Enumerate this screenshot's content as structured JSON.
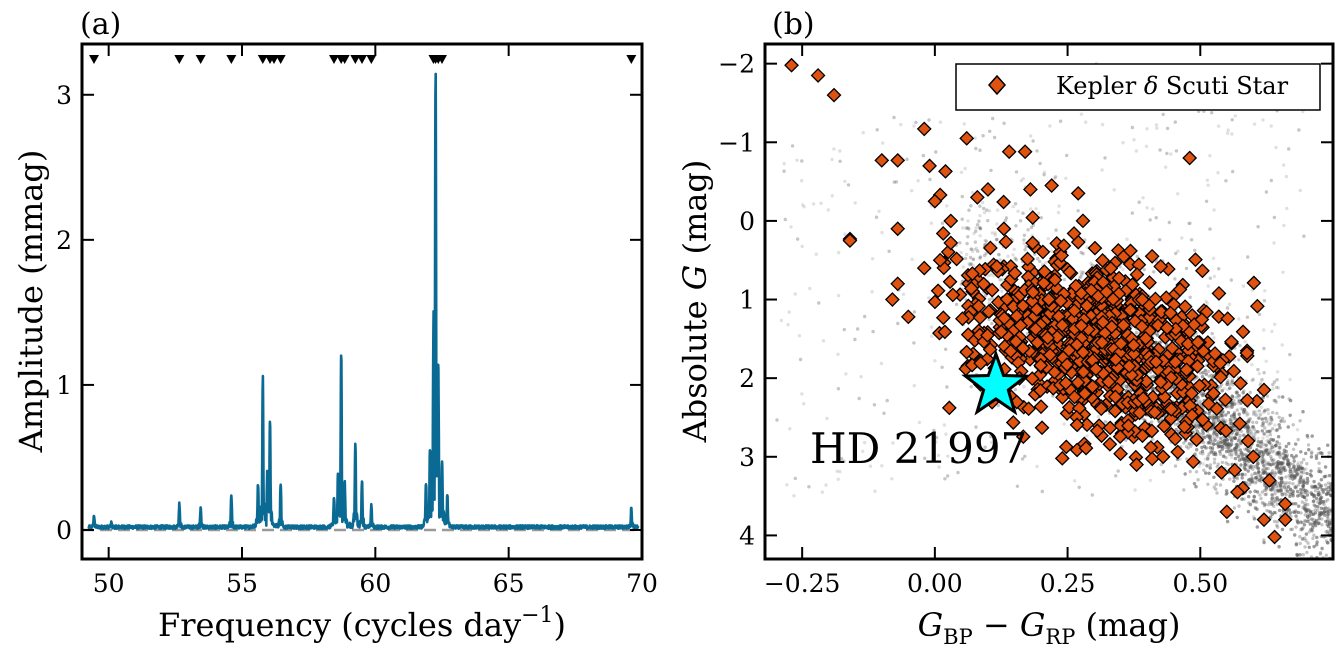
{
  "chart_data": [
    {
      "type": "line",
      "panel_label": "(a)",
      "xlabel": "Frequency (cycles day",
      "xlabel_sup": "−1",
      "xlabel_close": ")",
      "ylabel": "Amplitude (mmag)",
      "xlim": [
        49,
        70
      ],
      "ylim": [
        -0.2,
        3.35
      ],
      "xticks": [
        50,
        55,
        60,
        65,
        70
      ],
      "yticks": [
        0,
        1,
        2,
        3
      ],
      "grid": false,
      "zero_line": {
        "y": 0,
        "style": "dashed",
        "color": "#999999"
      },
      "series": [
        {
          "color": "#0b6a94",
          "peaks": [
            {
              "f": 49.45,
              "a": 0.08
            },
            {
              "f": 50.1,
              "a": 0.03
            },
            {
              "f": 52.65,
              "a": 0.16
            },
            {
              "f": 53.45,
              "a": 0.14
            },
            {
              "f": 54.6,
              "a": 0.22
            },
            {
              "f": 55.6,
              "a": 0.3
            },
            {
              "f": 55.78,
              "a": 0.99
            },
            {
              "f": 55.95,
              "a": 0.35
            },
            {
              "f": 56.05,
              "a": 0.7
            },
            {
              "f": 56.45,
              "a": 0.3
            },
            {
              "f": 58.45,
              "a": 0.2
            },
            {
              "f": 58.6,
              "a": 0.35
            },
            {
              "f": 58.72,
              "a": 1.17
            },
            {
              "f": 58.85,
              "a": 0.3
            },
            {
              "f": 59.25,
              "a": 0.58
            },
            {
              "f": 59.5,
              "a": 0.32
            },
            {
              "f": 59.85,
              "a": 0.15
            },
            {
              "f": 61.9,
              "a": 0.28
            },
            {
              "f": 62.05,
              "a": 0.45
            },
            {
              "f": 62.18,
              "a": 1.2
            },
            {
              "f": 62.26,
              "a": 3.02
            },
            {
              "f": 62.36,
              "a": 1.0
            },
            {
              "f": 62.5,
              "a": 0.4
            },
            {
              "f": 62.7,
              "a": 0.2
            },
            {
              "f": 69.6,
              "a": 0.13
            }
          ],
          "noise_level": 0.02
        }
      ],
      "markers": {
        "symbol": "triangle-down",
        "y": 3.24,
        "x": [
          49.45,
          52.65,
          53.45,
          54.6,
          55.78,
          56.05,
          56.2,
          56.45,
          58.45,
          58.72,
          58.85,
          59.25,
          59.5,
          59.85,
          62.18,
          62.26,
          62.36,
          62.5,
          69.6
        ]
      }
    },
    {
      "type": "scatter",
      "panel_label": "(b)",
      "xlabel_parts": [
        "G",
        "BP",
        " − ",
        "G",
        "RP",
        " (mag)"
      ],
      "ylabel_parts": [
        "Absolute ",
        "G",
        " (mag)"
      ],
      "xlim": [
        -0.32,
        0.75
      ],
      "ylim": [
        4.3,
        -2.25
      ],
      "y_inverted": true,
      "xticks": [
        -0.25,
        0.0,
        0.25,
        0.5
      ],
      "xtick_labels": [
        "−0.25",
        "0.00",
        "0.25",
        "0.50"
      ],
      "yticks": [
        -2,
        -1,
        0,
        1,
        2,
        3,
        4
      ],
      "ytick_labels": [
        "−2",
        "−1",
        "0",
        "1",
        "2",
        "3",
        "4"
      ],
      "grid": false,
      "legend": {
        "placement": "top-right",
        "entries": [
          {
            "label_parts": [
              "Kepler ",
              "δ",
              " Scuti Star"
            ],
            "marker": "diamond",
            "color": "#e0520f"
          }
        ]
      },
      "background_population": {
        "color": "#555555",
        "description_hidden": true,
        "density_axis": {
          "x0": 0.0,
          "y0": 0.6,
          "x1": 0.75,
          "y1": 4.3
        }
      },
      "series": [
        {
          "marker": "diamond",
          "color": "#e0520f",
          "edge_color": "#000000",
          "scattered_points": [
            [
              -0.27,
              -1.98
            ],
            [
              -0.22,
              -1.85
            ],
            [
              -0.19,
              -1.6
            ],
            [
              -0.16,
              0.23
            ],
            [
              -0.16,
              0.25
            ],
            [
              -0.1,
              -0.77
            ],
            [
              -0.07,
              -0.77
            ],
            [
              -0.02,
              -1.17
            ],
            [
              -0.01,
              -0.7
            ],
            [
              0.02,
              -0.63
            ],
            [
              0.06,
              -1.05
            ],
            [
              0.01,
              -0.33
            ],
            [
              0.0,
              -0.25
            ],
            [
              -0.07,
              0.8
            ],
            [
              -0.08,
              1.0
            ],
            [
              -0.05,
              1.22
            ],
            [
              -0.02,
              0.6
            ],
            [
              0.01,
              0.5
            ],
            [
              0.03,
              0.28
            ],
            [
              0.1,
              -0.4
            ],
            [
              0.14,
              -0.88
            ],
            [
              0.17,
              -0.88
            ],
            [
              0.18,
              -0.4
            ],
            [
              0.22,
              -0.45
            ],
            [
              0.27,
              -0.35
            ],
            [
              0.48,
              -0.8
            ],
            [
              -0.07,
              0.1
            ],
            [
              0.03,
              0.0
            ],
            [
              0.08,
              -0.3
            ],
            [
              0.13,
              0.1
            ],
            [
              0.24,
              3.02
            ],
            [
              0.62,
              3.8
            ],
            [
              0.66,
              3.8
            ],
            [
              0.64,
              4.02
            ],
            [
              0.55,
              3.7
            ],
            [
              0.6,
              3.0
            ],
            [
              0.63,
              3.3
            ],
            [
              0.66,
              3.6
            ],
            [
              0.58,
              3.4
            ],
            [
              0.54,
              3.2
            ],
            [
              0.62,
              2.15
            ],
            [
              0.59,
              2.8
            ],
            [
              0.57,
              3.45
            ],
            [
              0.43,
              3.0
            ],
            [
              0.38,
              3.1
            ]
          ],
          "cluster": {
            "x_center": 0.3,
            "y_center": 1.55,
            "x_spread": 0.13,
            "y_spread": 0.55,
            "count": 900
          }
        }
      ],
      "highlight": {
        "label": "HD 21997",
        "x": 0.115,
        "y": 2.1,
        "marker": "star",
        "color": "#00ffff"
      }
    }
  ]
}
